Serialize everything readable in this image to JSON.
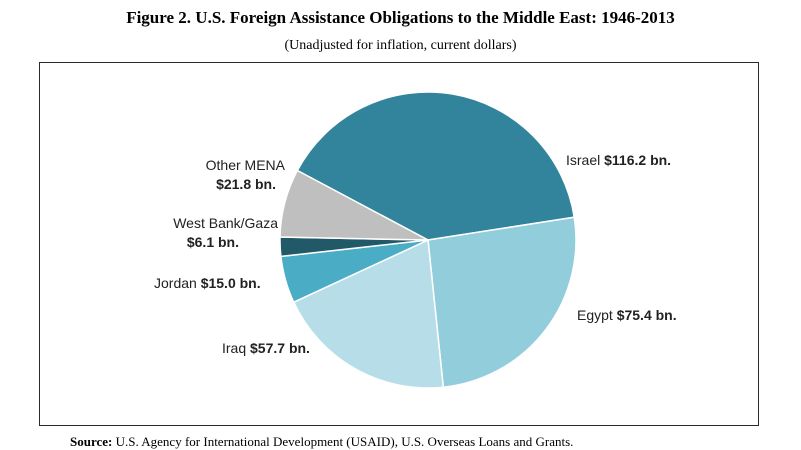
{
  "figure": {
    "title": "Figure 2. U.S. Foreign Assistance Obligations to the Middle East: 1946-2013",
    "subtitle": "(Unadjusted for inflation, current dollars)"
  },
  "source": {
    "key": "Source:",
    "text": "U.S. Agency for International Development (USAID), U.S. Overseas Loans and Grants."
  },
  "chart_data": {
    "type": "pie",
    "title": "Figure 2. U.S. Foreign Assistance Obligations to the Middle East: 1946-2013",
    "subtitle": "(Unadjusted for inflation, current dollars)",
    "unit": "bn.",
    "slices": [
      {
        "name": "Israel",
        "value": 116.2,
        "display": "$116.2 bn.",
        "color": "#31849b"
      },
      {
        "name": "Egypt",
        "value": 75.4,
        "display": "$75.4 bn.",
        "color": "#92cddc"
      },
      {
        "name": "Iraq",
        "value": 57.7,
        "display": "$57.7 bn.",
        "color": "#b7dee8"
      },
      {
        "name": "Jordan",
        "value": 15.0,
        "display": "$15.0 bn.",
        "color": "#4bacc6"
      },
      {
        "name": "West Bank/Gaza",
        "value": 6.1,
        "display": "$6.1 bn.",
        "color": "#215968"
      },
      {
        "name": "Other MENA",
        "value": 21.8,
        "display": "$21.8 bn.",
        "color": "#bfbfbf"
      }
    ]
  }
}
